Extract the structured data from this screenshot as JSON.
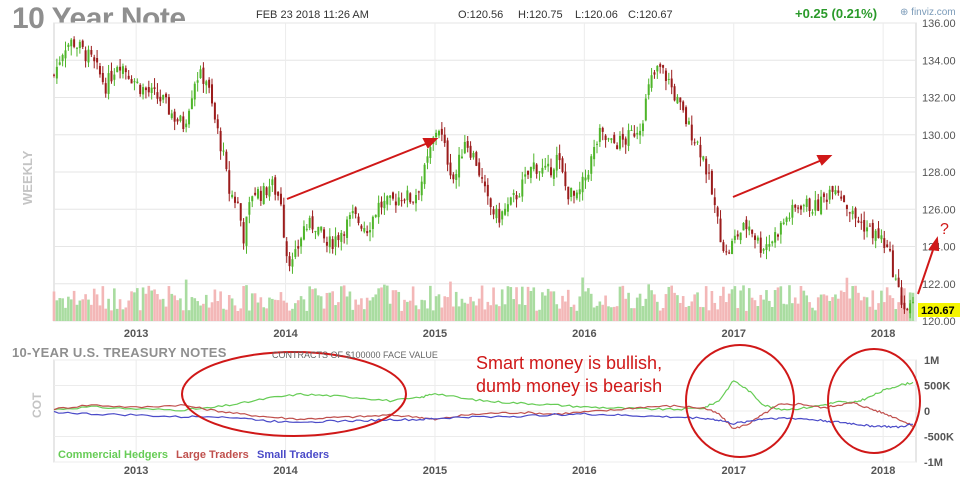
{
  "header": {
    "title": "10 Year Note",
    "datetime": "FEB 23 2018 11:26 AM",
    "open": "O:120.56",
    "high": "H:120.75",
    "low": "L:120.06",
    "close": "C:120.67",
    "change": "+0.25 (0.21%)",
    "brand": "finviz.com"
  },
  "price_panel": {
    "period_label": "WEEKLY",
    "last_price_label": "120.67",
    "annotation_question": "?"
  },
  "cot_panel": {
    "title": "10-YEAR U.S. TREASURY NOTES",
    "subtitle": "CONTRACTS OF $100000 FACE VALUE",
    "side_label": "COT",
    "annotation_line1": "Smart money is bullish,",
    "annotation_line2": "dumb money is bearish"
  },
  "colors": {
    "up": "#4fb52a",
    "down": "#9b1c1c",
    "vol_up": "#a9dca0",
    "vol_down": "#f3b7b7",
    "commercial": "#66cc55",
    "large": "#c0504d",
    "small": "#4a4ac8",
    "annotation": "#d01818",
    "last_price_bg": "#f5f500"
  },
  "chart_data": [
    {
      "type": "candlestick",
      "title": "10 Year Note",
      "interval": "weekly",
      "x_ticks": [
        "2013",
        "2014",
        "2015",
        "2016",
        "2017",
        "2018"
      ],
      "y_ticks": [
        "120.00",
        "122.00",
        "124.00",
        "126.00",
        "128.00",
        "130.00",
        "132.00",
        "134.00",
        "136.00"
      ],
      "ylim": [
        120,
        136
      ],
      "xlim": [
        2012.45,
        2018.22
      ],
      "close_path": [
        [
          2012.45,
          133.2
        ],
        [
          2012.52,
          134.8
        ],
        [
          2012.58,
          135.0
        ],
        [
          2012.7,
          134.0
        ],
        [
          2012.8,
          132.6
        ],
        [
          2012.88,
          134.0
        ],
        [
          2013.02,
          132.6
        ],
        [
          2013.18,
          131.8
        ],
        [
          2013.25,
          131.0
        ],
        [
          2013.32,
          130.5
        ],
        [
          2013.4,
          133.2
        ],
        [
          2013.47,
          133.0
        ],
        [
          2013.52,
          131.0
        ],
        [
          2013.58,
          129.0
        ],
        [
          2013.62,
          127.0
        ],
        [
          2013.68,
          126.3
        ],
        [
          2013.72,
          124.5
        ],
        [
          2013.78,
          127.0
        ],
        [
          2013.85,
          126.8
        ],
        [
          2013.9,
          127.4
        ],
        [
          2013.97,
          126.5
        ],
        [
          2014.0,
          123.8
        ],
        [
          2014.05,
          123.0
        ],
        [
          2014.12,
          125.0
        ],
        [
          2014.2,
          125.2
        ],
        [
          2014.28,
          124.0
        ],
        [
          2014.35,
          124.6
        ],
        [
          2014.45,
          125.6
        ],
        [
          2014.55,
          125.0
        ],
        [
          2014.62,
          126.2
        ],
        [
          2014.7,
          126.3
        ],
        [
          2014.78,
          126.8
        ],
        [
          2014.85,
          126.5
        ],
        [
          2014.92,
          127.7
        ],
        [
          2015.02,
          130.6
        ],
        [
          2015.08,
          128.8
        ],
        [
          2015.13,
          127.5
        ],
        [
          2015.2,
          129.8
        ],
        [
          2015.28,
          128.5
        ],
        [
          2015.35,
          126.4
        ],
        [
          2015.42,
          125.5
        ],
        [
          2015.5,
          126.2
        ],
        [
          2015.58,
          127.2
        ],
        [
          2015.66,
          128.4
        ],
        [
          2015.75,
          127.9
        ],
        [
          2015.82,
          128.8
        ],
        [
          2015.88,
          127.0
        ],
        [
          2015.95,
          126.5
        ],
        [
          2016.02,
          128.0
        ],
        [
          2016.1,
          130.0
        ],
        [
          2016.18,
          129.5
        ],
        [
          2016.28,
          129.7
        ],
        [
          2016.38,
          130.6
        ],
        [
          2016.44,
          132.8
        ],
        [
          2016.5,
          133.6
        ],
        [
          2016.56,
          133.0
        ],
        [
          2016.62,
          131.8
        ],
        [
          2016.7,
          130.4
        ],
        [
          2016.76,
          129.5
        ],
        [
          2016.8,
          128.7
        ],
        [
          2016.86,
          126.6
        ],
        [
          2016.9,
          125.0
        ],
        [
          2016.95,
          123.5
        ],
        [
          2017.02,
          124.6
        ],
        [
          2017.1,
          125.2
        ],
        [
          2017.18,
          124.0
        ],
        [
          2017.25,
          124.3
        ],
        [
          2017.35,
          125.5
        ],
        [
          2017.45,
          126.3
        ],
        [
          2017.55,
          126.1
        ],
        [
          2017.62,
          126.7
        ],
        [
          2017.67,
          127.5
        ],
        [
          2017.72,
          126.8
        ],
        [
          2017.8,
          125.6
        ],
        [
          2017.88,
          125.1
        ],
        [
          2017.95,
          124.6
        ],
        [
          2018.0,
          124.3
        ],
        [
          2018.05,
          123.3
        ],
        [
          2018.1,
          121.6
        ],
        [
          2018.15,
          120.6
        ],
        [
          2018.2,
          120.67
        ]
      ]
    },
    {
      "type": "line",
      "title": "10-YEAR U.S. TREASURY NOTES",
      "subtitle": "CONTRACTS OF $100000 FACE VALUE",
      "x_ticks": [
        "2013",
        "2014",
        "2015",
        "2016",
        "2017",
        "2018"
      ],
      "y_ticks": [
        "1M",
        "500K",
        "0",
        "-500K",
        "-1M"
      ],
      "ylim": [
        -1000,
        1000
      ],
      "y_unit": "thousand contracts",
      "series": [
        {
          "name": "Commercial Hedgers",
          "points": [
            [
              2012.45,
              30
            ],
            [
              2012.7,
              80
            ],
            [
              2013.0,
              40
            ],
            [
              2013.3,
              20
            ],
            [
              2013.5,
              60
            ],
            [
              2013.7,
              150
            ],
            [
              2013.9,
              260
            ],
            [
              2014.1,
              330
            ],
            [
              2014.3,
              300
            ],
            [
              2014.5,
              260
            ],
            [
              2014.7,
              200
            ],
            [
              2014.9,
              260
            ],
            [
              2015.0,
              350
            ],
            [
              2015.2,
              240
            ],
            [
              2015.4,
              180
            ],
            [
              2015.6,
              150
            ],
            [
              2015.8,
              120
            ],
            [
              2016.0,
              80
            ],
            [
              2016.2,
              60
            ],
            [
              2016.4,
              40
            ],
            [
              2016.6,
              30
            ],
            [
              2016.8,
              60
            ],
            [
              2016.9,
              200
            ],
            [
              2017.0,
              600
            ],
            [
              2017.1,
              400
            ],
            [
              2017.2,
              120
            ],
            [
              2017.3,
              30
            ],
            [
              2017.45,
              50
            ],
            [
              2017.6,
              120
            ],
            [
              2017.7,
              180
            ],
            [
              2017.8,
              160
            ],
            [
              2017.9,
              260
            ],
            [
              2018.0,
              400
            ],
            [
              2018.1,
              500
            ],
            [
              2018.2,
              560
            ]
          ]
        },
        {
          "name": "Large Traders",
          "points": [
            [
              2012.45,
              40
            ],
            [
              2012.7,
              120
            ],
            [
              2013.0,
              70
            ],
            [
              2013.3,
              120
            ],
            [
              2013.5,
              20
            ],
            [
              2013.7,
              -60
            ],
            [
              2013.9,
              -120
            ],
            [
              2014.1,
              -160
            ],
            [
              2014.3,
              -130
            ],
            [
              2014.5,
              -110
            ],
            [
              2014.7,
              -80
            ],
            [
              2014.9,
              -120
            ],
            [
              2015.0,
              -170
            ],
            [
              2015.2,
              -80
            ],
            [
              2015.4,
              -40
            ],
            [
              2015.6,
              -30
            ],
            [
              2015.8,
              -60
            ],
            [
              2016.0,
              -20
            ],
            [
              2016.2,
              20
            ],
            [
              2016.4,
              80
            ],
            [
              2016.6,
              100
            ],
            [
              2016.8,
              60
            ],
            [
              2016.9,
              -60
            ],
            [
              2017.0,
              -350
            ],
            [
              2017.1,
              -250
            ],
            [
              2017.2,
              -60
            ],
            [
              2017.3,
              120
            ],
            [
              2017.45,
              140
            ],
            [
              2017.6,
              60
            ],
            [
              2017.7,
              120
            ],
            [
              2017.8,
              160
            ],
            [
              2017.9,
              60
            ],
            [
              2018.0,
              -40
            ],
            [
              2018.1,
              -150
            ],
            [
              2018.2,
              -300
            ]
          ]
        },
        {
          "name": "Small Traders",
          "points": [
            [
              2012.45,
              -20
            ],
            [
              2012.7,
              -60
            ],
            [
              2013.0,
              -80
            ],
            [
              2013.3,
              -120
            ],
            [
              2013.5,
              -100
            ],
            [
              2013.7,
              -140
            ],
            [
              2013.9,
              -200
            ],
            [
              2014.1,
              -210
            ],
            [
              2014.3,
              -200
            ],
            [
              2014.5,
              -190
            ],
            [
              2014.7,
              -170
            ],
            [
              2014.9,
              -170
            ],
            [
              2015.0,
              -150
            ],
            [
              2015.2,
              -120
            ],
            [
              2015.4,
              -110
            ],
            [
              2015.6,
              -100
            ],
            [
              2015.8,
              -70
            ],
            [
              2016.0,
              -60
            ],
            [
              2016.2,
              -80
            ],
            [
              2016.4,
              -100
            ],
            [
              2016.6,
              -120
            ],
            [
              2016.8,
              -140
            ],
            [
              2016.9,
              -180
            ],
            [
              2017.0,
              -250
            ],
            [
              2017.1,
              -200
            ],
            [
              2017.2,
              -150
            ],
            [
              2017.3,
              -140
            ],
            [
              2017.45,
              -150
            ],
            [
              2017.6,
              -190
            ],
            [
              2017.7,
              -220
            ],
            [
              2017.8,
              -250
            ],
            [
              2017.9,
              -290
            ],
            [
              2018.0,
              -300
            ],
            [
              2018.1,
              -320
            ],
            [
              2018.2,
              -260
            ]
          ]
        }
      ]
    }
  ]
}
